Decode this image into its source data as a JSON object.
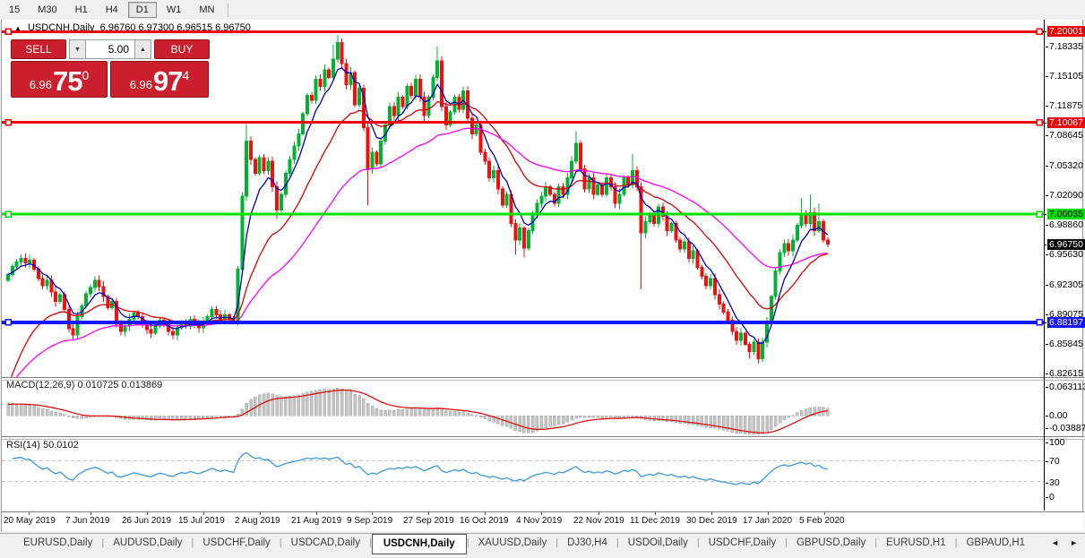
{
  "toolbar": {
    "timeframes": [
      "15",
      "M30",
      "H1",
      "H4",
      "D1",
      "W1",
      "MN"
    ],
    "active": "D1"
  },
  "chart": {
    "title": "USDCNH,Daily",
    "ohlc_display": "6.96760 6.97300 6.96515 6.96750",
    "collapse_icon": "▲"
  },
  "trade_panel": {
    "sell_label": "SELL",
    "buy_label": "BUY",
    "volume": "5.00",
    "down_icon": "▼",
    "up_icon": "▲",
    "sell_price": {
      "base": "6.96",
      "big": "75",
      "sup": "0"
    },
    "buy_price": {
      "base": "6.96",
      "big": "97",
      "sup": "4"
    }
  },
  "price_axis": [
    {
      "text": "7.20001",
      "price": 7.20001,
      "badge": "red"
    },
    {
      "text": "7.18335",
      "price": 7.18335,
      "badge": "none"
    },
    {
      "text": "7.15105",
      "price": 7.15105,
      "badge": "none"
    },
    {
      "text": "7.11875",
      "price": 7.11875,
      "badge": "none"
    },
    {
      "text": "7.10067",
      "price": 7.10067,
      "badge": "red"
    },
    {
      "text": "7.08645",
      "price": 7.08645,
      "badge": "none"
    },
    {
      "text": "7.05320",
      "price": 7.0532,
      "badge": "none"
    },
    {
      "text": "7.02090",
      "price": 7.0209,
      "badge": "none"
    },
    {
      "text": "7.00035",
      "price": 7.00035,
      "badge": "green"
    },
    {
      "text": "6.98860",
      "price": 6.9886,
      "badge": "none"
    },
    {
      "text": "6.96750",
      "price": 6.9675,
      "badge": "black"
    },
    {
      "text": "6.95630",
      "price": 6.9563,
      "badge": "none"
    },
    {
      "text": "6.92305",
      "price": 6.92305,
      "badge": "none"
    },
    {
      "text": "6.89075",
      "price": 6.89075,
      "badge": "none"
    },
    {
      "text": "6.88197",
      "price": 6.88197,
      "badge": "blue"
    },
    {
      "text": "6.85845",
      "price": 6.85845,
      "badge": "none"
    },
    {
      "text": "6.82615",
      "price": 6.82615,
      "badge": "none"
    }
  ],
  "hlines": [
    {
      "price": 7.20001,
      "color": "#f20000",
      "thickness": 3
    },
    {
      "price": 7.10067,
      "color": "#f20000",
      "thickness": 3
    },
    {
      "price": 7.00035,
      "color": "#00e000",
      "thickness": 3
    },
    {
      "price": 6.88197,
      "color": "#1414ff",
      "thickness": 4
    }
  ],
  "chart_data": {
    "type": "candlestick",
    "symbol": "USDCNH",
    "timeframe": "Daily",
    "colors": {
      "bull": "#00b432",
      "bear": "#ee1111",
      "ma_fast": "#0000c0",
      "ma_mid": "#dd0000",
      "ma_slow": "#ff00ff"
    },
    "closes": [
      6.934,
      6.943,
      6.948,
      6.952,
      6.947,
      6.95,
      6.94,
      6.93,
      6.922,
      6.928,
      6.915,
      6.905,
      6.912,
      6.896,
      6.875,
      6.868,
      6.888,
      6.9,
      6.913,
      6.92,
      6.928,
      6.921,
      6.91,
      6.898,
      6.905,
      6.88,
      6.872,
      6.878,
      6.885,
      6.892,
      6.888,
      6.88,
      6.874,
      6.87,
      6.878,
      6.884,
      6.88,
      6.872,
      6.868,
      6.876,
      6.882,
      6.878,
      6.885,
      6.88,
      6.876,
      6.882,
      6.888,
      6.896,
      6.89,
      6.885,
      6.89,
      6.886,
      6.882,
      6.94,
      7.02,
      7.08,
      7.06,
      7.045,
      7.062,
      7.048,
      7.058,
      7.03,
      7.005,
      7.022,
      7.045,
      7.06,
      7.075,
      7.088,
      7.11,
      7.13,
      7.125,
      7.148,
      7.14,
      7.158,
      7.15,
      7.17,
      7.188,
      7.165,
      7.142,
      7.155,
      7.12,
      7.138,
      7.095,
      7.05,
      7.068,
      7.055,
      7.08,
      7.098,
      7.118,
      7.108,
      7.128,
      7.118,
      7.14,
      7.13,
      7.148,
      7.128,
      7.108,
      7.128,
      7.15,
      7.168,
      7.118,
      7.098,
      7.112,
      7.128,
      7.115,
      7.135,
      7.105,
      7.088,
      7.098,
      7.068,
      7.058,
      7.04,
      7.048,
      7.028,
      7.01,
      7.022,
      6.99,
      6.972,
      6.985,
      6.963,
      6.982,
      7.0,
      7.012,
      7.02,
      7.03,
      7.022,
      7.012,
      7.03,
      7.022,
      7.04,
      7.058,
      7.078,
      7.05,
      7.028,
      7.04,
      7.022,
      7.032,
      7.022,
      7.04,
      7.03,
      7.012,
      7.022,
      7.04,
      7.032,
      7.048,
      7.03,
      6.98,
      6.992,
      7.0,
      6.99,
      7.008,
      6.998,
      6.982,
      6.99,
      6.972,
      6.962,
      6.97,
      6.952,
      6.96,
      6.942,
      6.932,
      6.922,
      6.93,
      6.912,
      6.902,
      6.893,
      6.884,
      6.872,
      6.862,
      6.87,
      6.858,
      6.85,
      6.86,
      6.842,
      6.86,
      6.882,
      6.91,
      6.938,
      6.958,
      6.968,
      6.96,
      6.972,
      6.988,
      7.0,
      6.99,
      7.002,
      6.982,
      6.992,
      6.972,
      6.9675
    ],
    "wick_overrides": {
      "15": {
        "l": 6.862
      },
      "54": {
        "l": 6.935
      },
      "55": {
        "h": 7.099
      },
      "62": {
        "l": 6.995
      },
      "75": {
        "h": 7.186
      },
      "76": {
        "h": 7.1965
      },
      "83": {
        "l": 7.01
      },
      "99": {
        "h": 7.184
      },
      "117": {
        "l": 6.956
      },
      "119": {
        "l": 6.953
      },
      "131": {
        "h": 7.091
      },
      "144": {
        "h": 7.066
      },
      "146": {
        "l": 6.918
      },
      "171": {
        "l": 6.842
      },
      "173": {
        "l": 6.837
      },
      "174": {
        "l": 6.838
      },
      "183": {
        "h": 7.018
      },
      "185": {
        "h": 7.022
      },
      "187": {
        "h": 7.012
      }
    },
    "last_close": "6.96750"
  },
  "macd": {
    "label_full": "MACD(12,26,9) 0.010725 0.013869",
    "main_value": "0.010725",
    "signal_value": "0.013869",
    "axis": [
      "0.063113",
      "0.00",
      "-0.038872"
    ],
    "histogram_color": "#c4c4c4",
    "signal_color": "#dd0000"
  },
  "rsi": {
    "label_full": "RSI(14) 50.0102",
    "value": "50.0102",
    "axis": [
      "100",
      "70",
      "30",
      "0"
    ],
    "levels": [
      70,
      30
    ],
    "line_color": "#3c98e0"
  },
  "date_axis": [
    "20 May 2019",
    "7 Jun 2019",
    "26 Jun 2019",
    "15 Jul 2019",
    "2 Aug 2019",
    "21 Aug 2019",
    "9 Sep 2019",
    "27 Sep 2019",
    "16 Oct 2019",
    "4 Nov 2019",
    "22 Nov 2019",
    "11 Dec 2019",
    "30 Dec 2019",
    "17 Jan 2020",
    "5 Feb 2020"
  ],
  "tabs": {
    "items": [
      "EURUSD,Daily",
      "AUDUSD,Daily",
      "USDCHF,Daily",
      "USDCAD,Daily",
      "USDCNH,Daily",
      "XAUUSD,Daily",
      "DJ30,H4",
      "USDOil,Daily",
      "USDCHF,Daily",
      "GBPUSD,Daily",
      "EURUSD,H1",
      "GBPAUD,H1"
    ],
    "active_index": 4,
    "left_arrow": "◄",
    "right_arrow": "►"
  }
}
